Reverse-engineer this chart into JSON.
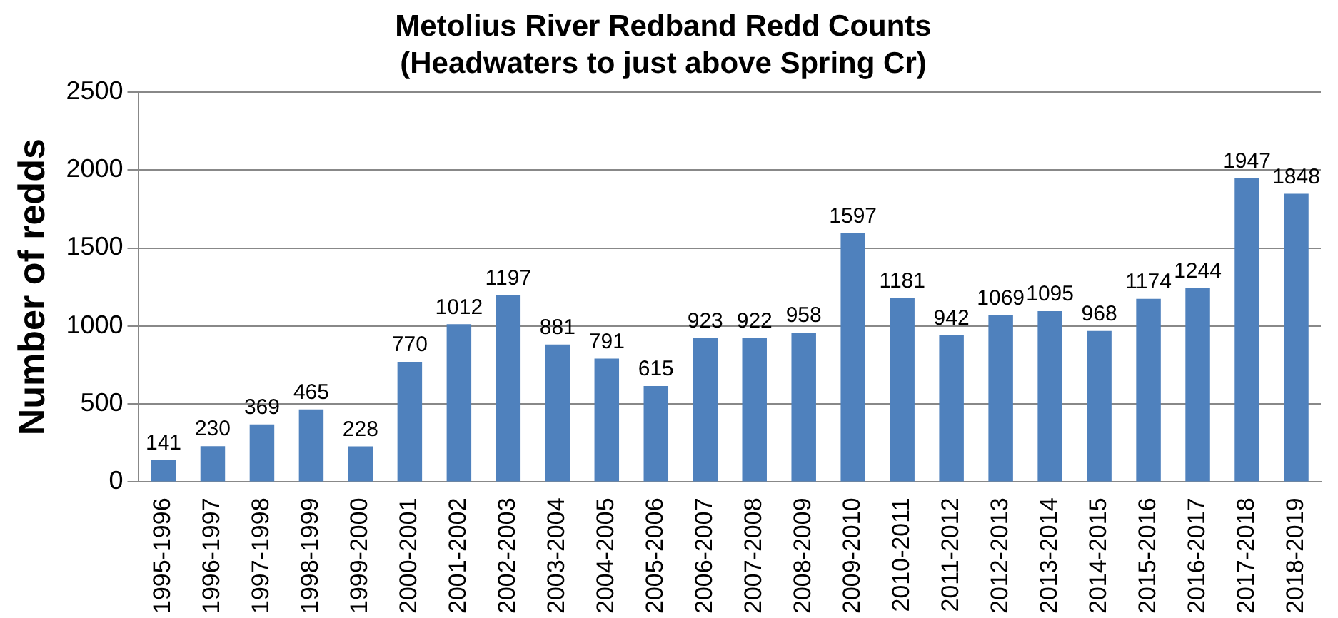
{
  "chart_data": {
    "type": "bar",
    "title": "Metolius River Redband Redd Counts",
    "subtitle": "(Headwaters to just above Spring Cr)",
    "ylabel": "Number of redds",
    "categories": [
      "1995-1996",
      "1996-1997",
      "1997-1998",
      "1998-1999",
      "1999-2000",
      "2000-2001",
      "2001-2002",
      "2002-2003",
      "2003-2004",
      "2004-2005",
      "2005-2006",
      "2006-2007",
      "2007-2008",
      "2008-2009",
      "2009-2010",
      "2010-2011",
      "2011-2012",
      "2012-2013",
      "2013-2014",
      "2014-2015",
      "2015-2016",
      "2016-2017",
      "2017-2018",
      "2018-2019"
    ],
    "values": [
      141,
      230,
      369,
      465,
      228,
      770,
      1012,
      1197,
      881,
      791,
      615,
      923,
      922,
      958,
      1597,
      1181,
      942,
      1069,
      1095,
      968,
      1174,
      1244,
      1947,
      1848
    ],
    "color": "#4f81bd",
    "ylim": [
      0,
      2500
    ],
    "yticks": [
      0,
      500,
      1000,
      1500,
      2000,
      2500
    ],
    "grid": "y",
    "data_labels": true
  }
}
